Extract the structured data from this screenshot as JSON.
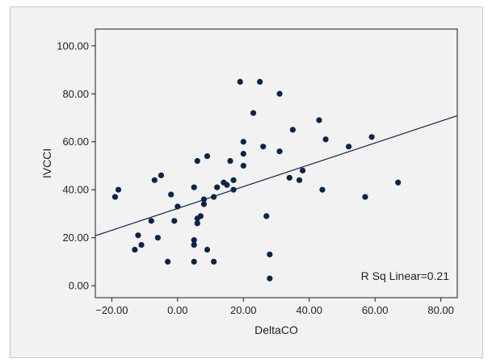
{
  "chart_data": {
    "type": "scatter",
    "xlabel": "DeltaCO",
    "ylabel": "IVCCI",
    "xlim": [
      -25,
      85
    ],
    "ylim": [
      -5,
      107
    ],
    "x_ticks": [
      -20,
      0,
      20,
      40,
      60,
      80
    ],
    "y_ticks": [
      0,
      20,
      40,
      60,
      80,
      100
    ],
    "x_tick_labels": [
      "−20.00",
      "0.00",
      "20.00",
      "40.00",
      "60.00",
      "80.00"
    ],
    "y_tick_labels": [
      "0.00",
      "20.00",
      "40.00",
      "60.00",
      "80.00",
      "100.00"
    ],
    "grid": false,
    "annotation": "R Sq Linear=0.21",
    "fit_line": {
      "intercept": 32.2,
      "slope": 0.455
    },
    "colors": {
      "points": "#0b2447",
      "line": "#0b2447",
      "plot_background": "#f2f2f2"
    },
    "points": [
      {
        "x": -19,
        "y": 37
      },
      {
        "x": -18,
        "y": 40
      },
      {
        "x": -13,
        "y": 15
      },
      {
        "x": -12,
        "y": 21
      },
      {
        "x": -11,
        "y": 17
      },
      {
        "x": -8,
        "y": 27
      },
      {
        "x": -7,
        "y": 44
      },
      {
        "x": -6,
        "y": 20
      },
      {
        "x": -5,
        "y": 46
      },
      {
        "x": -3,
        "y": 10
      },
      {
        "x": -2,
        "y": 38
      },
      {
        "x": -1,
        "y": 27
      },
      {
        "x": 0,
        "y": 33
      },
      {
        "x": 5,
        "y": 17
      },
      {
        "x": 5,
        "y": 19
      },
      {
        "x": 5,
        "y": 10
      },
      {
        "x": 5,
        "y": 41
      },
      {
        "x": 6,
        "y": 52
      },
      {
        "x": 6,
        "y": 26
      },
      {
        "x": 6,
        "y": 28
      },
      {
        "x": 7,
        "y": 29
      },
      {
        "x": 8,
        "y": 34
      },
      {
        "x": 8,
        "y": 36
      },
      {
        "x": 9,
        "y": 54
      },
      {
        "x": 9,
        "y": 15
      },
      {
        "x": 11,
        "y": 37
      },
      {
        "x": 11,
        "y": 10
      },
      {
        "x": 12,
        "y": 41
      },
      {
        "x": 14,
        "y": 43
      },
      {
        "x": 15,
        "y": 42
      },
      {
        "x": 16,
        "y": 52
      },
      {
        "x": 17,
        "y": 44
      },
      {
        "x": 17,
        "y": 40
      },
      {
        "x": 19,
        "y": 85
      },
      {
        "x": 20,
        "y": 50
      },
      {
        "x": 20,
        "y": 60
      },
      {
        "x": 20,
        "y": 55
      },
      {
        "x": 23,
        "y": 72
      },
      {
        "x": 25,
        "y": 85
      },
      {
        "x": 26,
        "y": 58
      },
      {
        "x": 27,
        "y": 29
      },
      {
        "x": 28,
        "y": 13
      },
      {
        "x": 28,
        "y": 3
      },
      {
        "x": 31,
        "y": 80
      },
      {
        "x": 31,
        "y": 56
      },
      {
        "x": 34,
        "y": 45
      },
      {
        "x": 35,
        "y": 65
      },
      {
        "x": 37,
        "y": 44
      },
      {
        "x": 38,
        "y": 48
      },
      {
        "x": 43,
        "y": 69
      },
      {
        "x": 44,
        "y": 40
      },
      {
        "x": 45,
        "y": 61
      },
      {
        "x": 52,
        "y": 58
      },
      {
        "x": 57,
        "y": 37
      },
      {
        "x": 59,
        "y": 62
      },
      {
        "x": 67,
        "y": 43
      }
    ]
  }
}
